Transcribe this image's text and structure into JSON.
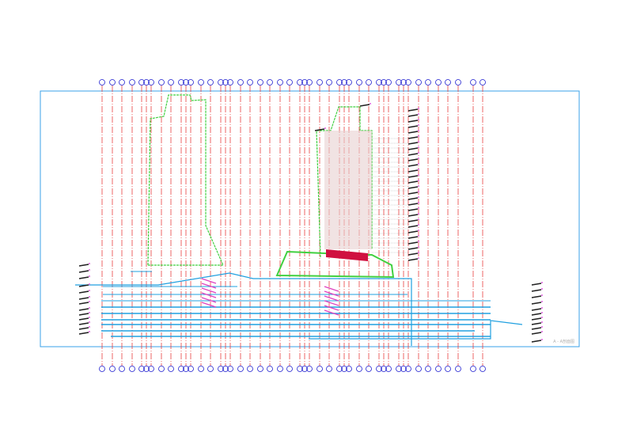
{
  "drawing": {
    "title_label": "A - A剖面图",
    "colors": {
      "frame": "#3aa0e8",
      "axis": "#e84040",
      "axis_bubble": "#2020d0",
      "outline": "#40d040",
      "floor": "#20a0e0",
      "stair": "#e040c0",
      "level_mark": "#202020",
      "level_text": "#e060e0",
      "accent": "#d01040"
    }
  }
}
